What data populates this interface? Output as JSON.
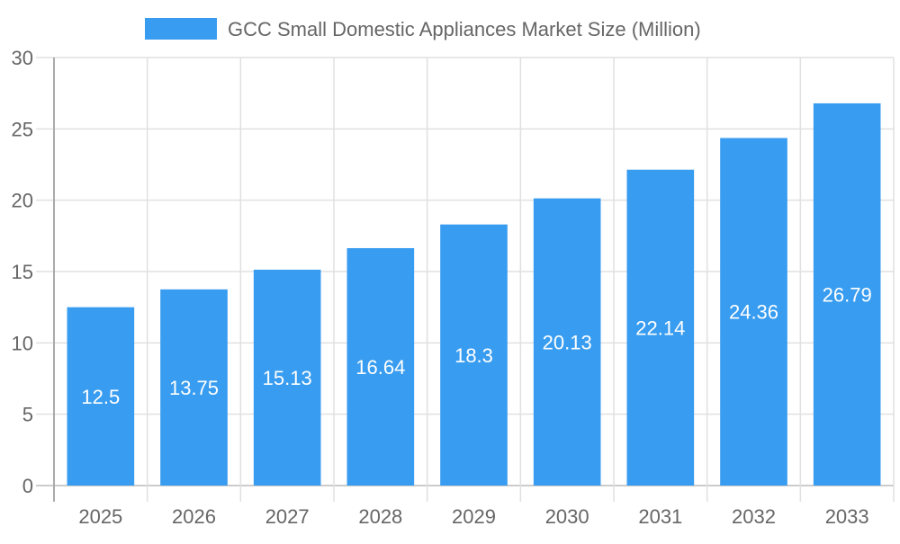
{
  "chart_data": {
    "type": "bar",
    "title": "",
    "xlabel": "",
    "ylabel": "",
    "categories": [
      "2025",
      "2026",
      "2027",
      "2028",
      "2029",
      "2030",
      "2031",
      "2032",
      "2033"
    ],
    "series": [
      {
        "name": "GCC Small Domestic Appliances Market Size (Million)",
        "values": [
          12.5,
          13.75,
          15.13,
          16.64,
          18.3,
          20.13,
          22.14,
          24.36,
          26.79
        ],
        "color": "#389cf0"
      }
    ],
    "ylim": [
      0,
      30
    ],
    "yticks": [
      0,
      5,
      10,
      15,
      20,
      25,
      30
    ],
    "grid": true,
    "legend": "top-center",
    "data_labels": true
  }
}
